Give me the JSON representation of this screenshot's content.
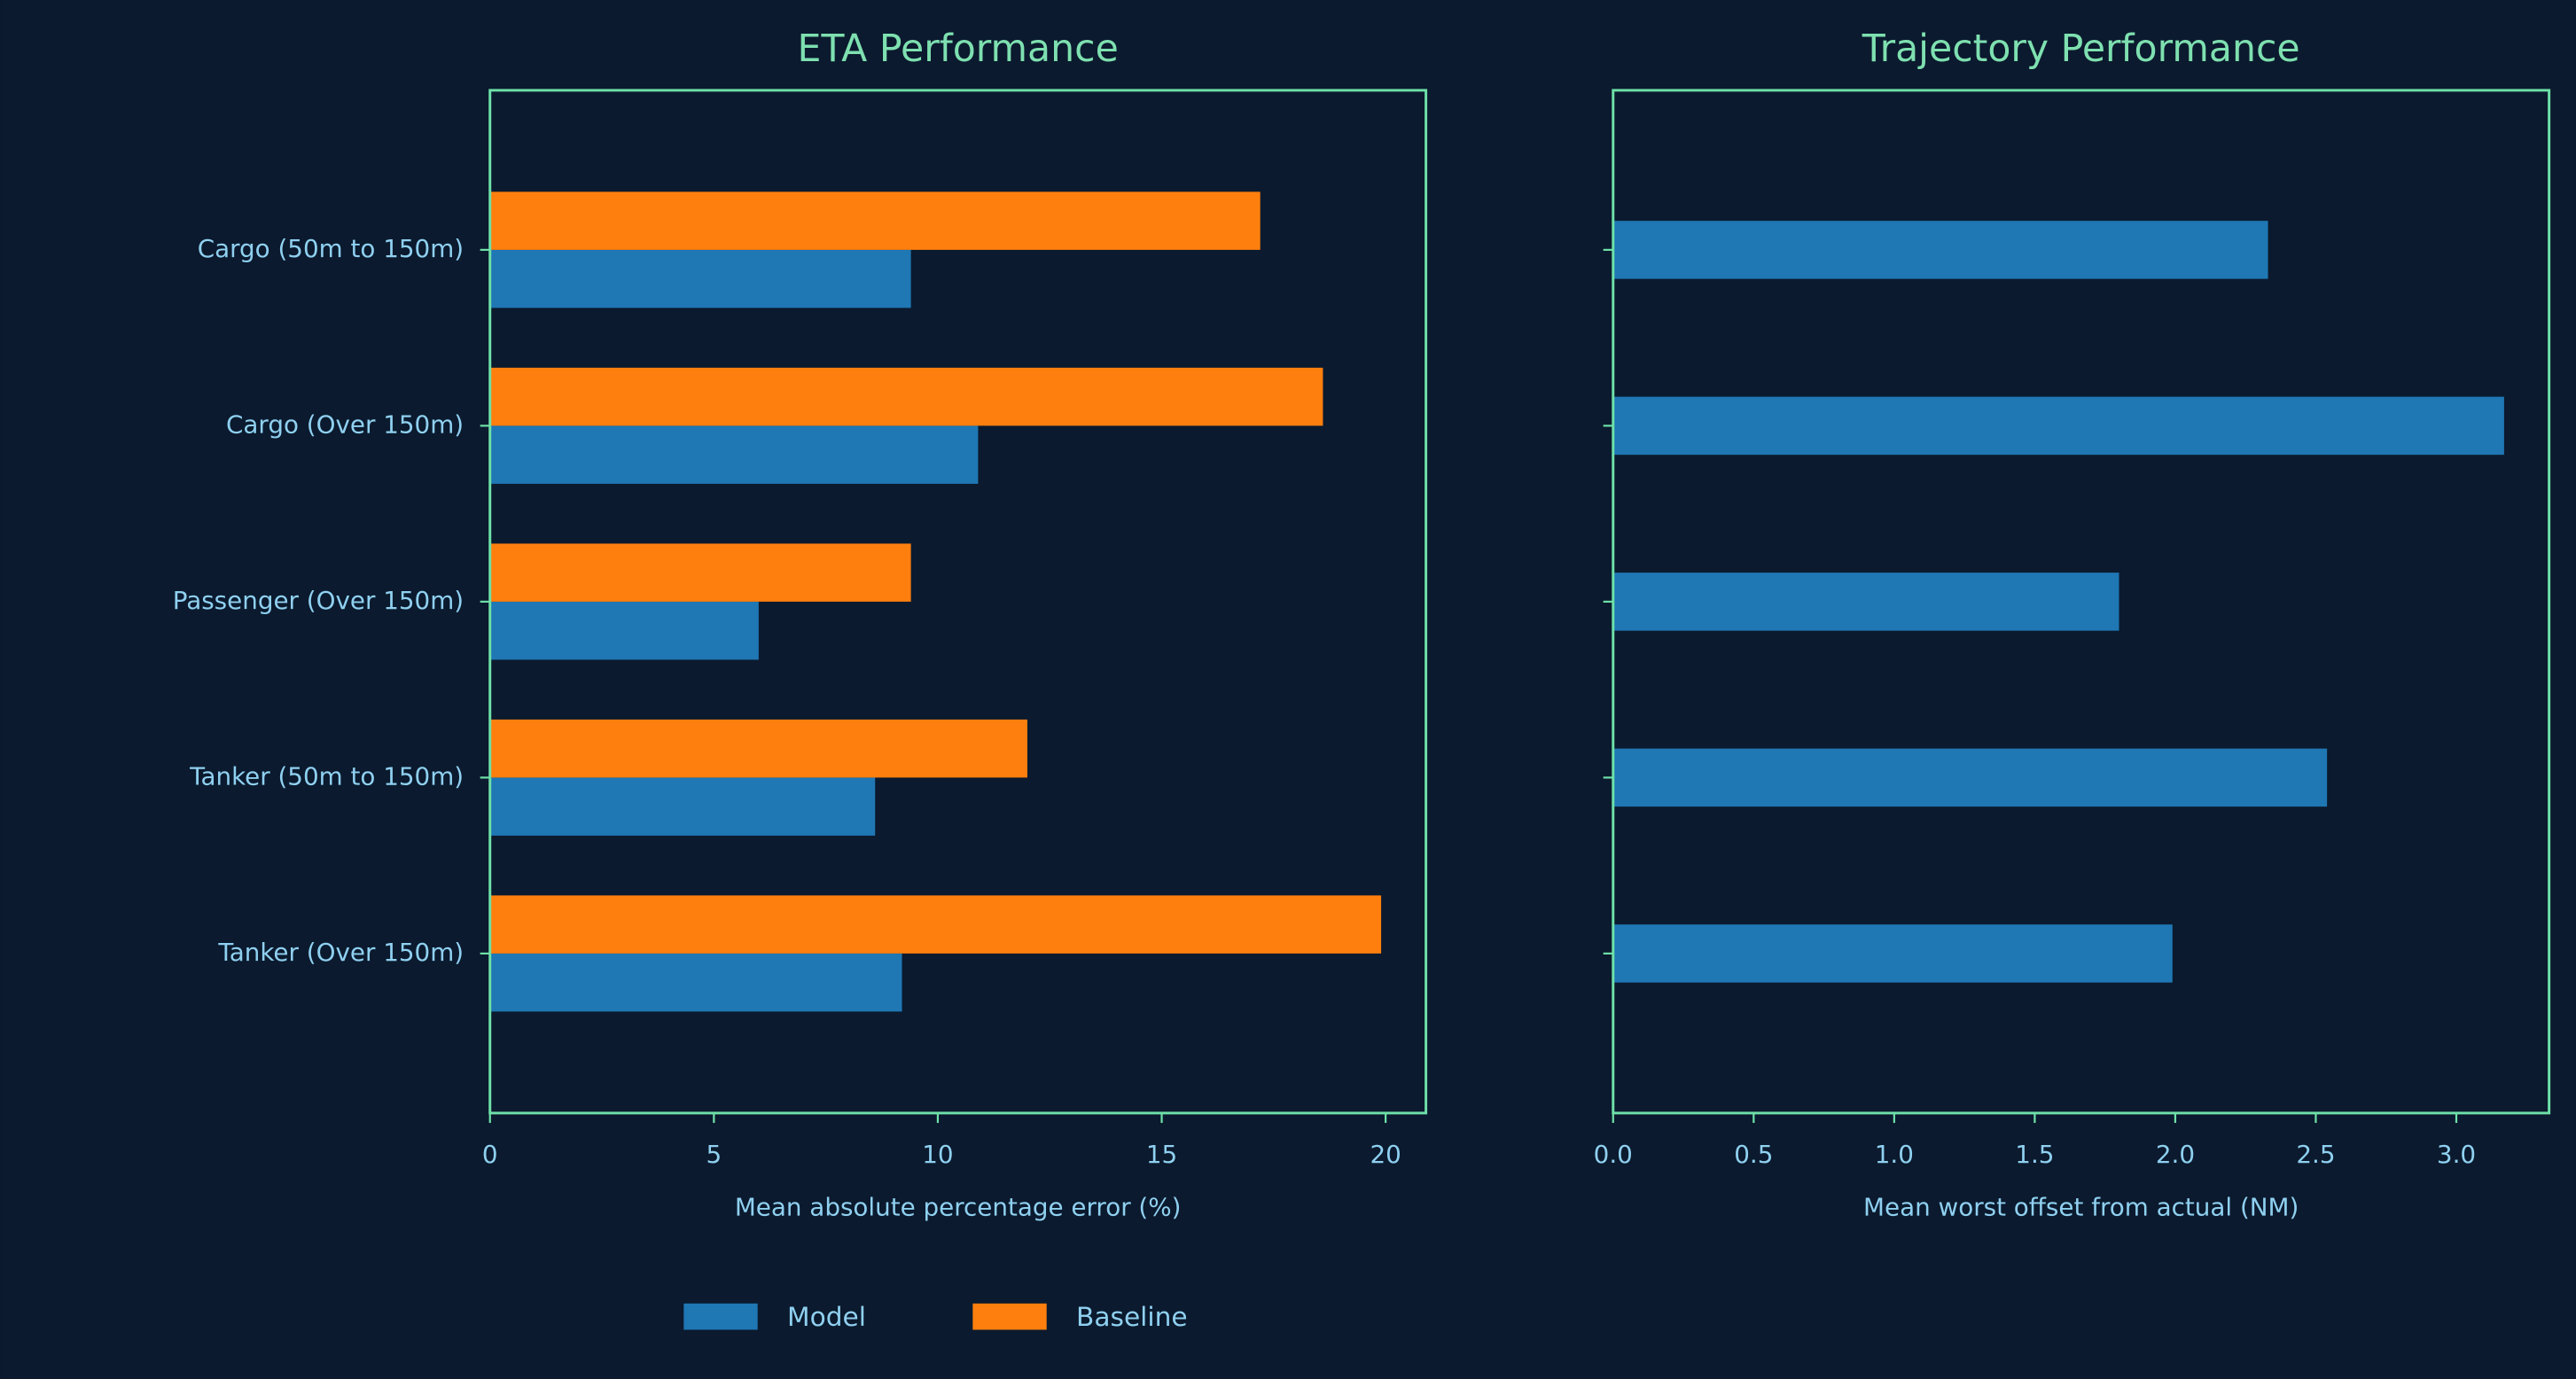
{
  "chart_data": [
    {
      "type": "barh",
      "title": "ETA Performance",
      "x_label": "Mean absolute percentage error (%)",
      "categories": [
        "Cargo (50m to 150m)",
        "Cargo (Over 150m)",
        "Passenger (Over 150m)",
        "Tanker (50m to 150m)",
        "Tanker (Over 150m)"
      ],
      "series": [
        {
          "name": "Model",
          "color": "#1f77b4",
          "values": [
            9.4,
            10.9,
            6.0,
            8.6,
            9.2
          ]
        },
        {
          "name": "Baseline",
          "color": "#ff7f0e",
          "values": [
            17.2,
            18.6,
            9.4,
            12.0,
            19.9
          ]
        }
      ],
      "xlim": [
        0,
        20.9
      ],
      "xticks": [
        0,
        5,
        10,
        15,
        20
      ],
      "legend": "lower center"
    },
    {
      "type": "barh",
      "title": "Trajectory Performance",
      "x_label": "Mean worst offset from actual (NM)",
      "categories": [
        null,
        null,
        null,
        null,
        null
      ],
      "values": [
        2.33,
        3.17,
        1.8,
        2.54,
        1.99
      ],
      "color": "#1f77b4",
      "xlim": [
        0,
        3.33
      ],
      "xticks": [
        {
          "value": 0,
          "label": "0.0"
        },
        0.5,
        {
          "value": 1,
          "label": "1.0"
        },
        1.5,
        {
          "value": 2,
          "label": "2.0"
        },
        2.5,
        {
          "value": 3,
          "label": "3.0"
        }
      ]
    }
  ]
}
